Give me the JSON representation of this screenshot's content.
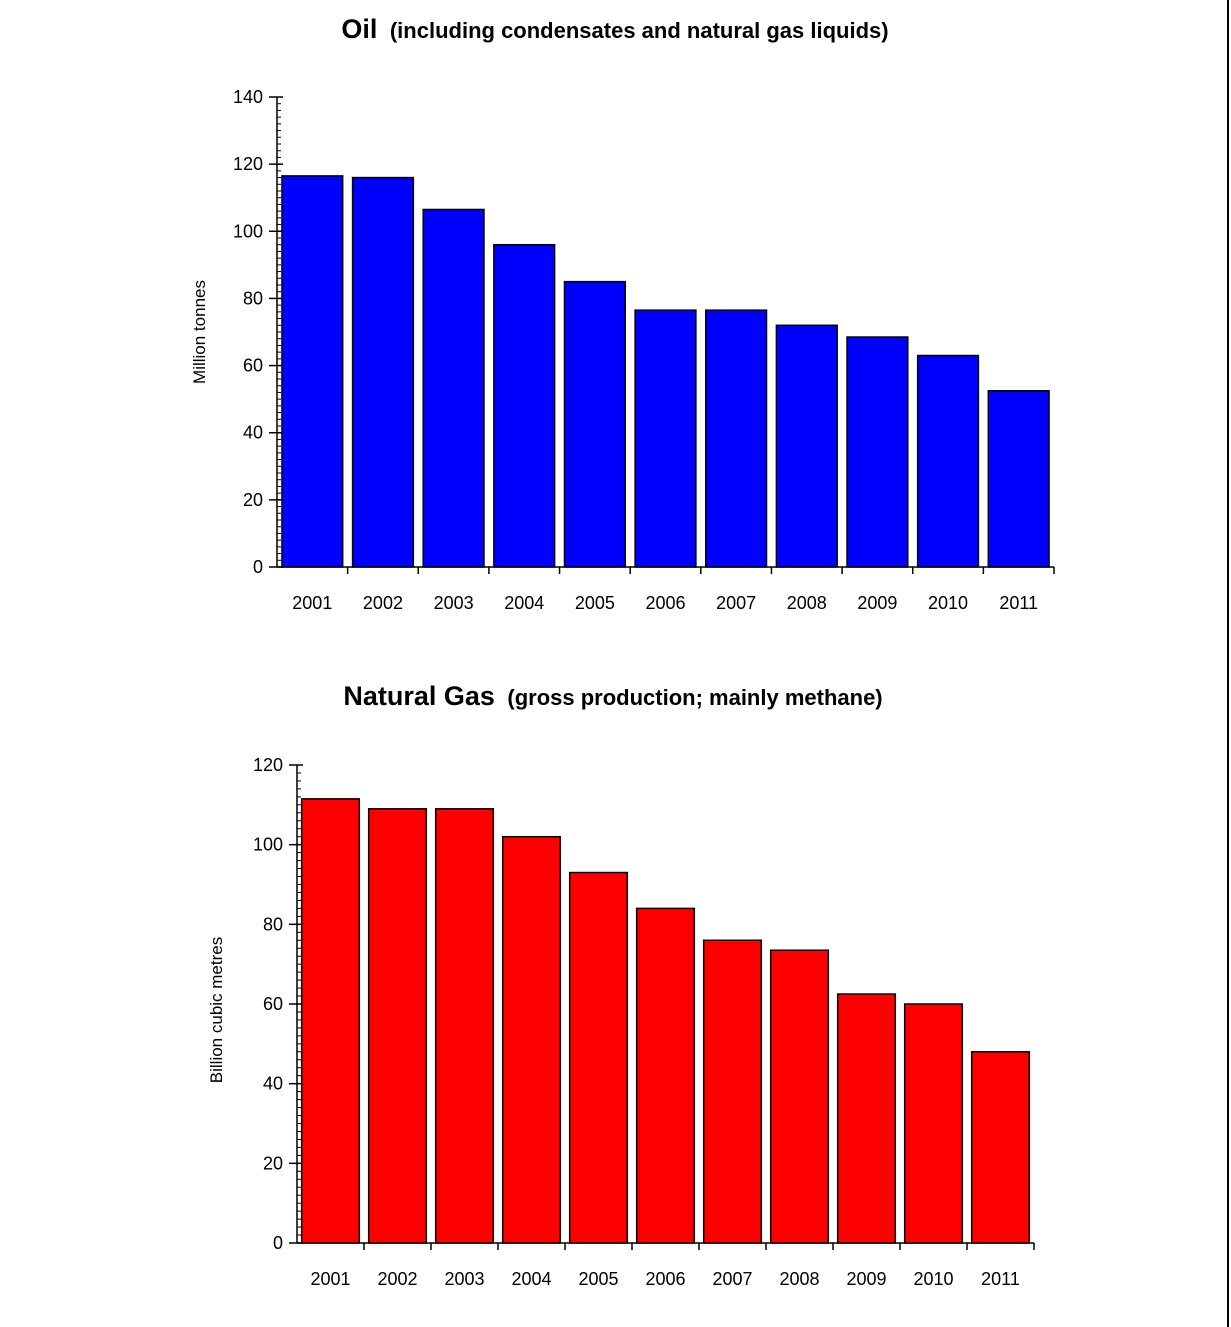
{
  "chart_data": [
    {
      "type": "bar",
      "title": "Oil",
      "subtitle": "(including condensates and natural gas liquids)",
      "xlabel": "",
      "ylabel": "Million tonnes",
      "categories": [
        "2001",
        "2002",
        "2003",
        "2004",
        "2005",
        "2006",
        "2007",
        "2008",
        "2009",
        "2010",
        "2011"
      ],
      "values": [
        116.5,
        116,
        106.5,
        96,
        85,
        76.5,
        76.5,
        72,
        68.5,
        63,
        52.5
      ],
      "ylim": [
        0,
        140
      ],
      "yticks": [
        0,
        20,
        40,
        60,
        80,
        100,
        120,
        140
      ],
      "bar_color": "#0000ff",
      "grid": false,
      "legend": "none"
    },
    {
      "type": "bar",
      "title": "Natural Gas",
      "subtitle": "(gross production; mainly methane)",
      "xlabel": "",
      "ylabel": "Billion cubic metres",
      "categories": [
        "2001",
        "2002",
        "2003",
        "2004",
        "2005",
        "2006",
        "2007",
        "2008",
        "2009",
        "2010",
        "2011"
      ],
      "values": [
        111.5,
        109,
        109,
        102,
        93,
        84,
        76,
        73.5,
        62.5,
        60,
        48
      ],
      "ylim": [
        0,
        120
      ],
      "yticks": [
        0,
        20,
        40,
        60,
        80,
        100,
        120
      ],
      "bar_color": "#ff0000",
      "grid": false,
      "legend": "none"
    }
  ]
}
